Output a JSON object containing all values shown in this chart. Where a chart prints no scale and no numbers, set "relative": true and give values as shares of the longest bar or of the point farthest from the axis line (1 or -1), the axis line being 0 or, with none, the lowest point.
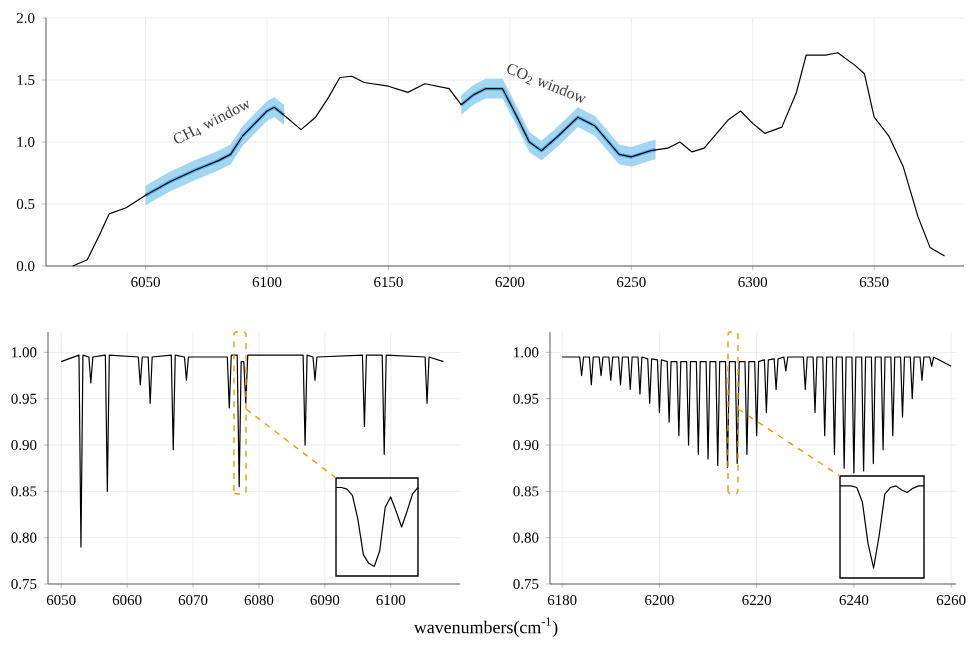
{
  "chart_data": [
    {
      "type": "line",
      "xlim": [
        6009,
        6387
      ],
      "ylim": [
        0,
        2
      ],
      "grid": true,
      "xticks": [
        6050,
        6100,
        6150,
        6200,
        6250,
        6300,
        6350
      ],
      "yticks": [
        {
          "value": 0,
          "label": "0.0"
        },
        {
          "value": 0.5,
          "label": "0.5"
        },
        {
          "value": 1,
          "label": "1.0"
        },
        {
          "value": 1.5,
          "label": "1.5"
        },
        {
          "value": 2,
          "label": "2.0"
        }
      ],
      "series": [
        {
          "color": "#000000",
          "x": [
            6020,
            6026,
            6031,
            6035,
            6042,
            6050,
            6060,
            6070,
            6080,
            6085,
            6090,
            6100,
            6103,
            6108,
            6114,
            6120,
            6125,
            6130,
            6135,
            6140,
            6150,
            6158,
            6165,
            6175,
            6180,
            6185,
            6190,
            6197,
            6203,
            6208,
            6213,
            6220,
            6228,
            6235,
            6245,
            6250,
            6258,
            6265,
            6270,
            6275,
            6280,
            6290,
            6295,
            6300,
            6305,
            6312,
            6318,
            6322,
            6330,
            6335,
            6342,
            6346,
            6350,
            6356,
            6362,
            6368,
            6373,
            6379
          ],
          "values": [
            0,
            0.05,
            0.25,
            0.42,
            0.47,
            0.57,
            0.68,
            0.77,
            0.85,
            0.9,
            1.05,
            1.25,
            1.28,
            1.2,
            1.1,
            1.2,
            1.35,
            1.52,
            1.53,
            1.48,
            1.45,
            1.4,
            1.47,
            1.43,
            1.3,
            1.38,
            1.43,
            1.43,
            1.2,
            1.0,
            0.93,
            1.05,
            1.2,
            1.13,
            0.9,
            0.88,
            0.93,
            0.95,
            1.0,
            0.92,
            0.95,
            1.18,
            1.25,
            1.15,
            1.07,
            1.12,
            1.4,
            1.7,
            1.7,
            1.72,
            1.62,
            1.55,
            1.2,
            1.05,
            0.8,
            0.4,
            0.15,
            0.08
          ]
        },
        {
          "color": "#56b4e9",
          "x": [
            6050,
            6060,
            6070,
            6080,
            6085,
            6090,
            6100,
            6103,
            6107
          ],
          "values": [
            0.57,
            0.68,
            0.77,
            0.85,
            0.9,
            1.05,
            1.25,
            1.28,
            1.22
          ],
          "lower": [
            0.49,
            0.6,
            0.69,
            0.77,
            0.82,
            0.97,
            1.17,
            1.2,
            1.14
          ],
          "upper": [
            0.65,
            0.76,
            0.85,
            0.93,
            0.98,
            1.13,
            1.33,
            1.36,
            1.3
          ]
        },
        {
          "color": "#56b4e9",
          "x": [
            6180,
            6185,
            6190,
            6197,
            6203,
            6208,
            6213,
            6220,
            6228,
            6235,
            6245,
            6250,
            6258,
            6260
          ],
          "values": [
            1.3,
            1.38,
            1.43,
            1.43,
            1.2,
            1.0,
            0.93,
            1.05,
            1.2,
            1.13,
            0.9,
            0.88,
            0.93,
            0.94
          ],
          "lower": [
            1.22,
            1.3,
            1.35,
            1.35,
            1.12,
            0.92,
            0.85,
            0.97,
            1.12,
            1.05,
            0.82,
            0.8,
            0.85,
            0.86
          ],
          "upper": [
            1.38,
            1.46,
            1.51,
            1.51,
            1.28,
            1.08,
            1.01,
            1.13,
            1.28,
            1.21,
            0.98,
            0.96,
            1.01,
            1.02
          ]
        }
      ],
      "annotations": [
        "CH$_{4}$ window",
        "CO$_{2}$ window"
      ]
    },
    {
      "type": "line",
      "xlim": [
        6048,
        6110.5
      ],
      "ylim": [
        0.75,
        1.022
      ],
      "grid": true,
      "xlabel": "wavenumbers(cm$^{-1}$)",
      "xticks": [
        6050,
        6060,
        6070,
        6080,
        6090,
        6100
      ],
      "yticks": [
        {
          "value": 0.75,
          "label": "0.75"
        },
        {
          "value": 0.8,
          "label": "0.80"
        },
        {
          "value": 0.85,
          "label": "0.85"
        },
        {
          "value": 0.9,
          "label": "0.90"
        },
        {
          "value": 0.95,
          "label": "0.95"
        },
        {
          "value": 1,
          "label": "1.00"
        }
      ],
      "series": [
        {
          "color": "#000000",
          "x": [
            6050,
            6052.7,
            6053,
            6053.3,
            6054.2,
            6054.5,
            6054.8,
            6056.7,
            6057,
            6057.3,
            6061.7,
            6062,
            6062.3,
            6063.2,
            6063.5,
            6063.8,
            6066.7,
            6067,
            6067.3,
            6068.7,
            6069,
            6069.3,
            6075.2,
            6075.5,
            6075.8,
            6076.7,
            6077,
            6077.3,
            6077.7,
            6078,
            6078.3,
            6086.7,
            6087,
            6087.3,
            6088.2,
            6088.5,
            6088.8,
            6095.7,
            6096,
            6096.3,
            6098.7,
            6099,
            6099.3,
            6105.2,
            6105.5,
            6105.8,
            6108
          ],
          "values": [
            0.99,
            0.997,
            0.79,
            0.997,
            0.995,
            0.967,
            0.995,
            0.997,
            0.85,
            0.997,
            0.995,
            0.965,
            0.995,
            0.995,
            0.945,
            0.995,
            0.997,
            0.895,
            0.997,
            0.995,
            0.97,
            0.995,
            0.995,
            0.94,
            0.997,
            0.997,
            0.855,
            0.99,
            0.99,
            0.945,
            0.997,
            0.997,
            0.9,
            0.997,
            0.995,
            0.97,
            0.995,
            0.997,
            0.92,
            0.997,
            0.997,
            0.89,
            0.997,
            0.995,
            0.945,
            0.995,
            0.99
          ]
        }
      ]
    },
    {
      "type": "line",
      "relative": true,
      "tick_labels": false,
      "categories": [
        null,
        null,
        null,
        null,
        null,
        null,
        null,
        null,
        null,
        null,
        null,
        null,
        null,
        null,
        null,
        null
      ],
      "series": [
        {
          "color": "#000000",
          "values": [
            1,
            1,
            0.98,
            0.9,
            0.6,
            0.15,
            0.04,
            0,
            0.2,
            0.75,
            0.88,
            0.7,
            0.5,
            0.7,
            0.92,
            1
          ]
        }
      ]
    },
    {
      "type": "line",
      "xlim": [
        6177.5,
        6261
      ],
      "ylim": [
        0.75,
        1.022
      ],
      "grid": true,
      "xticks": [
        6180,
        6200,
        6220,
        6240,
        6260
      ],
      "yticks": [
        {
          "value": 0.75,
          "label": "0.75"
        },
        {
          "value": 0.8,
          "label": "0.80"
        },
        {
          "value": 0.85,
          "label": "0.85"
        },
        {
          "value": 0.9,
          "label": "0.90"
        },
        {
          "value": 0.95,
          "label": "0.95"
        },
        {
          "value": 1,
          "label": "1.00"
        }
      ],
      "series": [
        {
          "color": "#000000",
          "x": [
            6180,
            6183.6,
            6184,
            6184.4,
            6185.6,
            6186,
            6186.4,
            6187.6,
            6188,
            6188.4,
            6189.6,
            6190,
            6190.4,
            6191.6,
            6192,
            6192.4,
            6193.6,
            6194,
            6194.4,
            6195.6,
            6196,
            6196.4,
            6197.6,
            6198,
            6198.4,
            6199.6,
            6200,
            6200.4,
            6201.6,
            6202,
            6202.4,
            6203.6,
            6204,
            6204.4,
            6205.6,
            6206,
            6206.4,
            6207.6,
            6208,
            6208.4,
            6209.6,
            6210,
            6210.4,
            6211.6,
            6212,
            6212.4,
            6213.6,
            6214,
            6214.4,
            6215.6,
            6216,
            6216.4,
            6217.6,
            6218,
            6218.4,
            6219.6,
            6220,
            6220.4,
            6221.6,
            6222,
            6222.4,
            6223.6,
            6224,
            6224.4,
            6225.6,
            6226,
            6226.4,
            6229.6,
            6230,
            6230.4,
            6231.6,
            6232,
            6232.4,
            6233.6,
            6234,
            6234.4,
            6235.6,
            6236,
            6236.4,
            6237.6,
            6238,
            6238.4,
            6239.6,
            6240,
            6240.4,
            6241.6,
            6242,
            6242.4,
            6243.6,
            6244,
            6244.4,
            6245.6,
            6246,
            6246.4,
            6247.6,
            6248,
            6248.4,
            6249.6,
            6250,
            6250.4,
            6251.6,
            6252,
            6252.4,
            6253.6,
            6254,
            6254.4,
            6255.6,
            6256,
            6256.4,
            6260
          ],
          "values": [
            0.995,
            0.995,
            0.975,
            0.995,
            0.995,
            0.965,
            0.995,
            0.995,
            0.975,
            0.995,
            0.995,
            0.97,
            0.995,
            0.995,
            0.965,
            0.995,
            0.995,
            0.96,
            0.995,
            0.995,
            0.955,
            0.995,
            0.993,
            0.945,
            0.993,
            0.992,
            0.935,
            0.992,
            0.99,
            0.925,
            0.99,
            0.99,
            0.91,
            0.99,
            0.99,
            0.9,
            0.99,
            0.99,
            0.89,
            0.99,
            0.99,
            0.885,
            0.99,
            0.99,
            0.878,
            0.99,
            0.99,
            0.876,
            0.99,
            0.99,
            0.88,
            0.99,
            0.99,
            0.89,
            0.99,
            0.99,
            0.91,
            0.99,
            0.992,
            0.935,
            0.992,
            0.993,
            0.96,
            0.993,
            0.995,
            0.98,
            0.995,
            0.995,
            0.96,
            0.995,
            0.995,
            0.935,
            0.995,
            0.995,
            0.91,
            0.995,
            0.995,
            0.89,
            0.995,
            0.995,
            0.875,
            0.995,
            0.995,
            0.87,
            0.995,
            0.995,
            0.872,
            0.995,
            0.995,
            0.88,
            0.995,
            0.995,
            0.895,
            0.995,
            0.995,
            0.91,
            0.995,
            0.995,
            0.93,
            0.995,
            0.995,
            0.95,
            0.995,
            0.995,
            0.97,
            0.995,
            0.995,
            0.985,
            0.995,
            0.985
          ]
        }
      ]
    },
    {
      "type": "line",
      "relative": true,
      "tick_labels": false,
      "categories": [
        null,
        null,
        null,
        null,
        null,
        null,
        null,
        null,
        null,
        null,
        null,
        null,
        null,
        null,
        null,
        null
      ],
      "series": [
        {
          "color": "#000000",
          "values": [
            1,
            1,
            1,
            0.98,
            0.8,
            0.3,
            0,
            0.4,
            0.9,
            0.98,
            1,
            0.95,
            0.92,
            0.97,
            1,
            1
          ]
        }
      ]
    }
  ]
}
